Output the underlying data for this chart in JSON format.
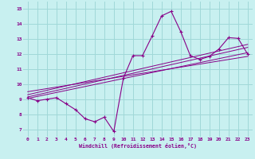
{
  "bg_color": "#c8f0f0",
  "line_color": "#880088",
  "grid_color": "#a0d8d8",
  "xlabel": "Windchill (Refroidissement éolien,°C)",
  "xlim": [
    -0.5,
    23.5
  ],
  "ylim": [
    6.5,
    15.5
  ],
  "yticks": [
    7,
    8,
    9,
    10,
    11,
    12,
    13,
    14,
    15
  ],
  "xticks": [
    0,
    1,
    2,
    3,
    4,
    5,
    6,
    7,
    8,
    9,
    10,
    11,
    12,
    13,
    14,
    15,
    16,
    17,
    18,
    19,
    20,
    21,
    22,
    23
  ],
  "main_series": [
    9.1,
    8.9,
    9.0,
    9.1,
    8.7,
    8.3,
    7.7,
    7.5,
    7.8,
    6.85,
    10.4,
    11.9,
    11.9,
    13.2,
    14.55,
    14.85,
    13.5,
    11.9,
    11.65,
    11.85,
    12.35,
    13.1,
    13.05,
    12.0
  ],
  "trend_lines": [
    [
      [
        0,
        9.15
      ],
      [
        23,
        12.45
      ]
    ],
    [
      [
        0,
        9.05
      ],
      [
        23,
        12.1
      ]
    ],
    [
      [
        0,
        9.3
      ],
      [
        23,
        12.65
      ]
    ],
    [
      [
        0,
        9.5
      ],
      [
        23,
        11.85
      ]
    ]
  ]
}
